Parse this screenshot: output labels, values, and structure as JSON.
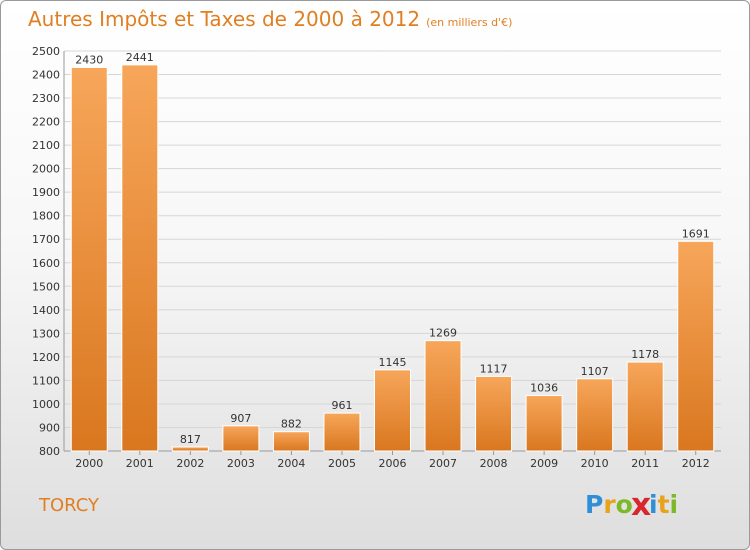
{
  "title": "Autres Impôts et Taxes de 2000 à 2012",
  "unit_note": "(en milliers d'€)",
  "town": "TORCY",
  "logo": {
    "letters": [
      "P",
      "r",
      "o",
      "x",
      "i",
      "t",
      "i"
    ],
    "colors": [
      "#2f8fd6",
      "#e8a21b",
      "#7bb927",
      "#d8262e",
      "#2f8fd6",
      "#e8a21b",
      "#7bb927"
    ]
  },
  "colors": {
    "bar_top": "#f7a65a",
    "bar_bottom": "#d9771f",
    "accent": "#e07f22",
    "grid": "#d6d6d6"
  },
  "chart_data": {
    "type": "bar",
    "title": "Autres Impôts et Taxes de 2000 à 2012",
    "categories": [
      "2000",
      "2001",
      "2002",
      "2003",
      "2004",
      "2005",
      "2006",
      "2007",
      "2008",
      "2009",
      "2010",
      "2011",
      "2012"
    ],
    "values": [
      2430,
      2441,
      817,
      907,
      882,
      961,
      1145,
      1269,
      1117,
      1036,
      1107,
      1178,
      1691
    ],
    "ylim": [
      800,
      2500
    ],
    "yticks": [
      800,
      900,
      1000,
      1100,
      1200,
      1300,
      1400,
      1500,
      1600,
      1700,
      1800,
      1900,
      2000,
      2100,
      2200,
      2300,
      2400,
      2500
    ],
    "grid": true,
    "data_labels": true,
    "xlabel": "",
    "ylabel": ""
  }
}
